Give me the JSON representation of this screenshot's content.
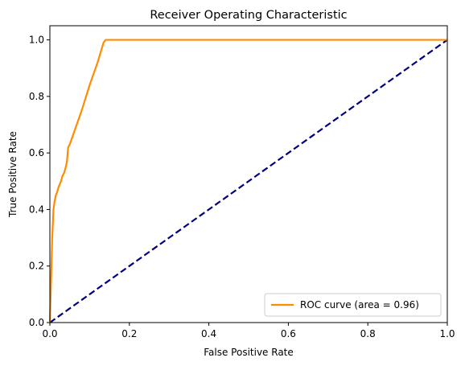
{
  "chart_data": {
    "type": "line",
    "title": "Receiver Operating Characteristic",
    "xlabel": "False Positive Rate",
    "ylabel": "True Positive Rate",
    "xlim": [
      0.0,
      1.0
    ],
    "ylim": [
      0.0,
      1.05
    ],
    "xticks": [
      "0.0",
      "0.2",
      "0.4",
      "0.6",
      "0.8",
      "1.0"
    ],
    "yticks": [
      "0.0",
      "0.2",
      "0.4",
      "0.6",
      "0.8",
      "1.0"
    ],
    "grid": false,
    "legend_position": "lower-right",
    "series": [
      {
        "name": "ROC curve (area = 0.96)",
        "color": "#ff8c00",
        "style": "solid",
        "points": [
          [
            0.0,
            0.0
          ],
          [
            0.003,
            0.15
          ],
          [
            0.006,
            0.3
          ],
          [
            0.009,
            0.4
          ],
          [
            0.012,
            0.43
          ],
          [
            0.015,
            0.45
          ],
          [
            0.018,
            0.46
          ],
          [
            0.022,
            0.48
          ],
          [
            0.025,
            0.49
          ],
          [
            0.028,
            0.5
          ],
          [
            0.032,
            0.52
          ],
          [
            0.036,
            0.53
          ],
          [
            0.04,
            0.55
          ],
          [
            0.043,
            0.57
          ],
          [
            0.046,
            0.62
          ],
          [
            0.05,
            0.63
          ],
          [
            0.06,
            0.67
          ],
          [
            0.08,
            0.75
          ],
          [
            0.1,
            0.84
          ],
          [
            0.12,
            0.92
          ],
          [
            0.135,
            0.99
          ],
          [
            0.14,
            1.0
          ],
          [
            0.2,
            1.0
          ],
          [
            0.4,
            1.0
          ],
          [
            0.6,
            1.0
          ],
          [
            0.8,
            1.0
          ],
          [
            1.0,
            1.0
          ]
        ]
      },
      {
        "name": "",
        "color": "#000080",
        "style": "dashed",
        "points": [
          [
            0.0,
            0.0
          ],
          [
            1.0,
            1.0
          ]
        ]
      }
    ]
  }
}
